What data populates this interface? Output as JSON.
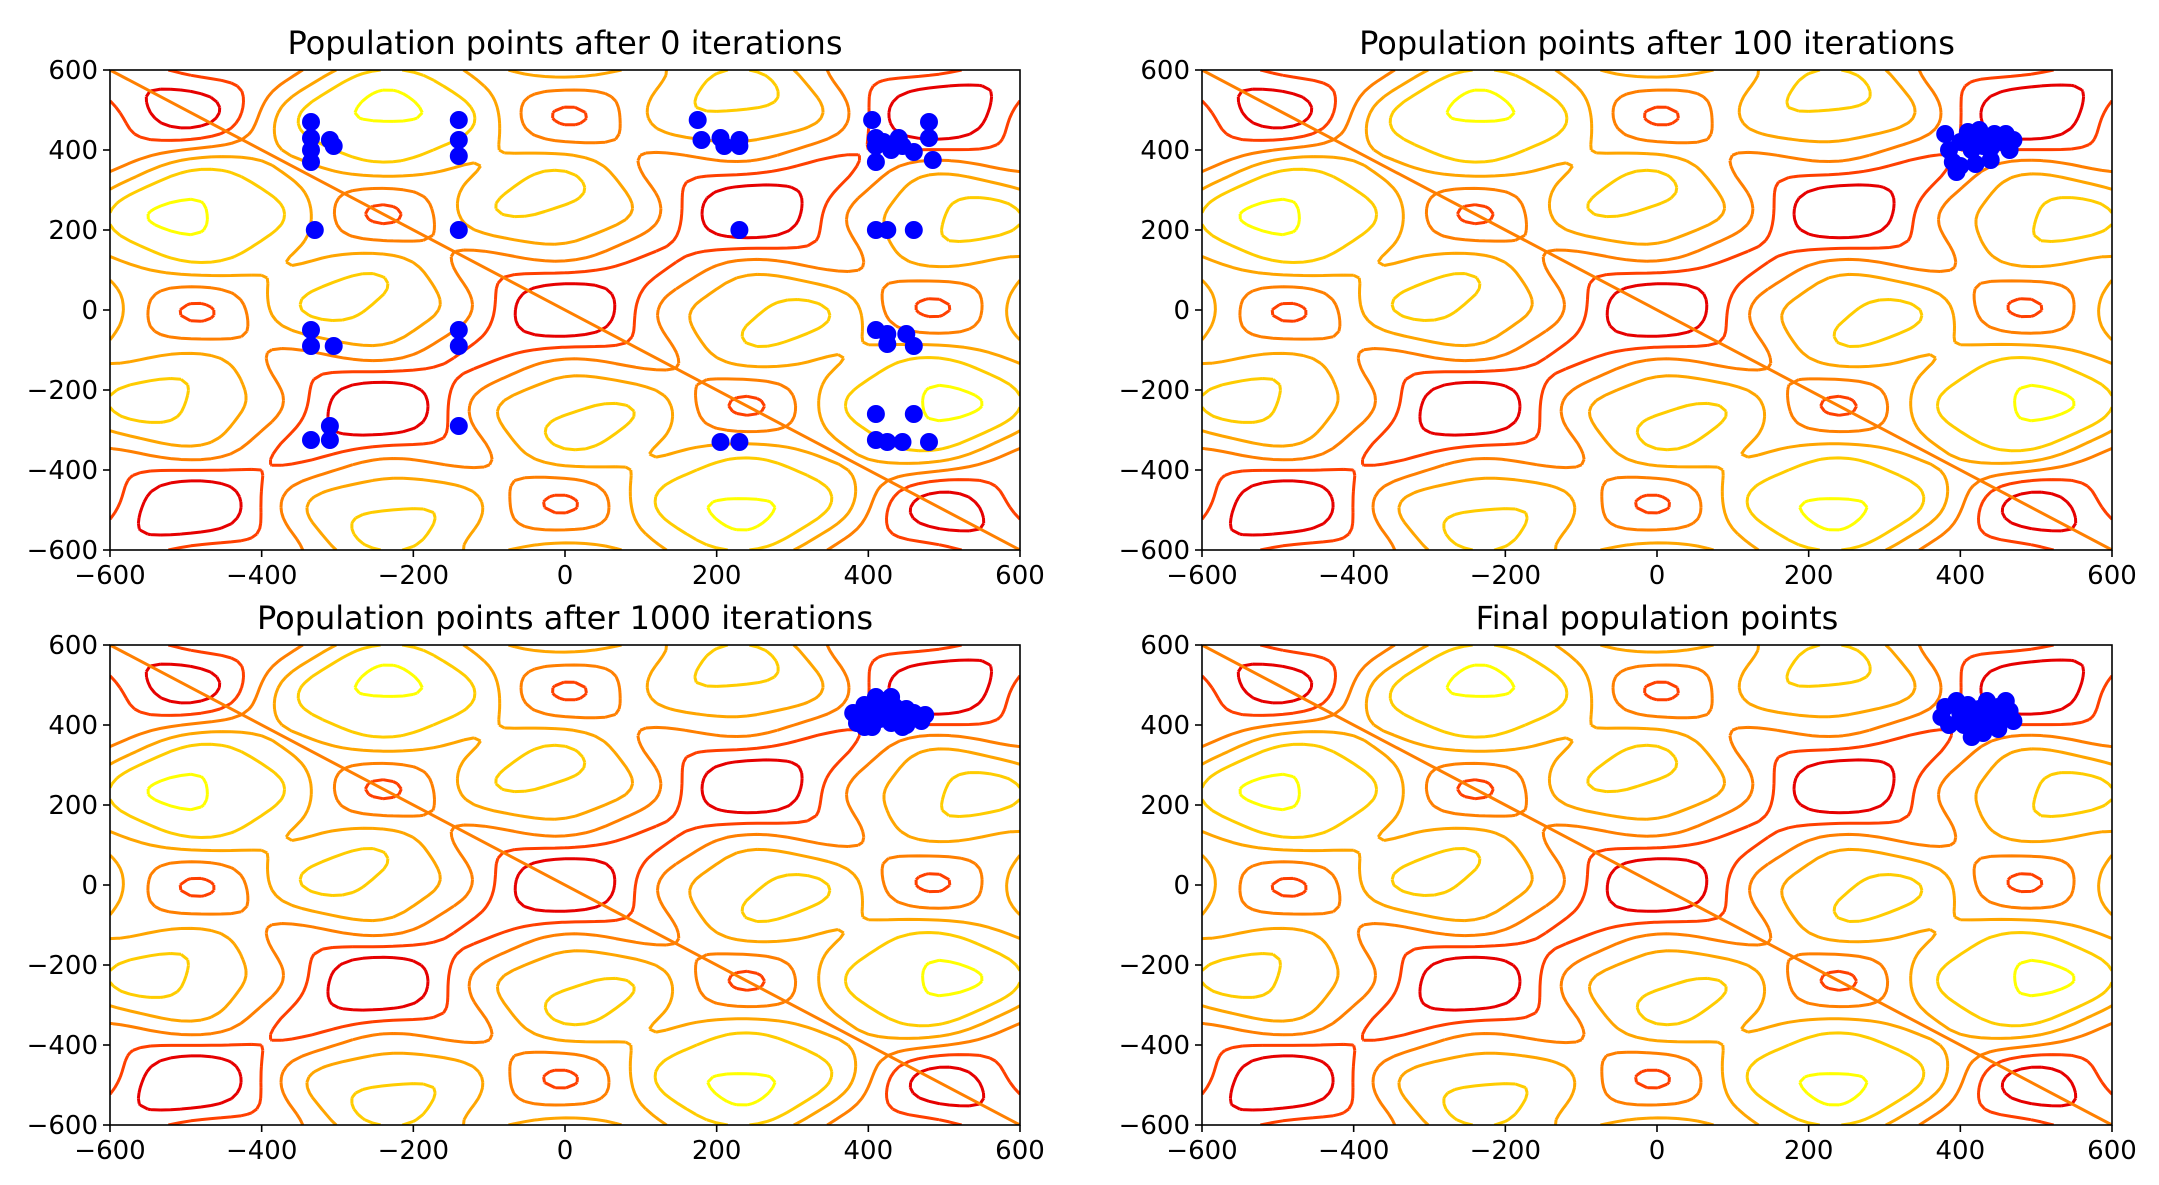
{
  "chart_data": [
    {
      "type": "scatter",
      "title": "Population points after 0 iterations",
      "xlim": [
        -600,
        600
      ],
      "ylim": [
        -600,
        600
      ],
      "xticks": [
        -600,
        -400,
        -200,
        0,
        200,
        400,
        600
      ],
      "yticks": [
        -600,
        -400,
        -200,
        0,
        200,
        400,
        600
      ],
      "xtick_labels": [
        "−600",
        "−400",
        "−200",
        "0",
        "200",
        "400",
        "600"
      ],
      "ytick_labels": [
        "−600",
        "−400",
        "−200",
        "0",
        "200",
        "400",
        "600"
      ],
      "points": [
        [
          -335,
          470
        ],
        [
          -335,
          430
        ],
        [
          -335,
          400
        ],
        [
          -335,
          370
        ],
        [
          -310,
          425
        ],
        [
          -305,
          410
        ],
        [
          -140,
          475
        ],
        [
          -140,
          425
        ],
        [
          -140,
          385
        ],
        [
          175,
          475
        ],
        [
          180,
          425
        ],
        [
          205,
          430
        ],
        [
          210,
          410
        ],
        [
          230,
          425
        ],
        [
          230,
          410
        ],
        [
          405,
          475
        ],
        [
          410,
          430
        ],
        [
          410,
          410
        ],
        [
          410,
          370
        ],
        [
          420,
          420
        ],
        [
          430,
          400
        ],
        [
          440,
          430
        ],
        [
          445,
          410
        ],
        [
          460,
          395
        ],
        [
          480,
          470
        ],
        [
          480,
          430
        ],
        [
          485,
          375
        ],
        [
          -330,
          200
        ],
        [
          -140,
          200
        ],
        [
          230,
          200
        ],
        [
          410,
          200
        ],
        [
          425,
          200
        ],
        [
          460,
          200
        ],
        [
          -335,
          -50
        ],
        [
          -335,
          -90
        ],
        [
          -305,
          -90
        ],
        [
          -140,
          -50
        ],
        [
          -140,
          -90
        ],
        [
          410,
          -50
        ],
        [
          425,
          -60
        ],
        [
          425,
          -85
        ],
        [
          450,
          -60
        ],
        [
          460,
          -90
        ],
        [
          -335,
          -325
        ],
        [
          -310,
          -290
        ],
        [
          -310,
          -325
        ],
        [
          -140,
          -290
        ],
        [
          205,
          -330
        ],
        [
          230,
          -330
        ],
        [
          410,
          -260
        ],
        [
          410,
          -325
        ],
        [
          425,
          -330
        ],
        [
          445,
          -330
        ],
        [
          460,
          -260
        ],
        [
          480,
          -330
        ]
      ]
    },
    {
      "type": "scatter",
      "title": "Population points after 100 iterations",
      "xlim": [
        -600,
        600
      ],
      "ylim": [
        -600,
        600
      ],
      "xticks": [
        -600,
        -400,
        -200,
        0,
        200,
        400,
        600
      ],
      "yticks": [
        -600,
        -400,
        -200,
        0,
        200,
        400,
        600
      ],
      "xtick_labels": [
        "−600",
        "−400",
        "−200",
        "0",
        "200",
        "400",
        "600"
      ],
      "ytick_labels": [
        "−600",
        "−400",
        "−200",
        "0",
        "200",
        "400",
        "600"
      ],
      "points": [
        [
          380,
          440
        ],
        [
          385,
          400
        ],
        [
          390,
          370
        ],
        [
          400,
          420
        ],
        [
          410,
          445
        ],
        [
          410,
          420
        ],
        [
          415,
          400
        ],
        [
          420,
          430
        ],
        [
          425,
          450
        ],
        [
          430,
          410
        ],
        [
          435,
          425
        ],
        [
          440,
          405
        ],
        [
          445,
          440
        ],
        [
          455,
          420
        ],
        [
          465,
          400
        ],
        [
          470,
          425
        ],
        [
          400,
          360
        ],
        [
          420,
          365
        ],
        [
          440,
          375
        ],
        [
          460,
          440
        ],
        [
          395,
          345
        ]
      ]
    },
    {
      "type": "scatter",
      "title": "Population points after 1000 iterations",
      "xlim": [
        -600,
        600
      ],
      "ylim": [
        -600,
        600
      ],
      "xticks": [
        -600,
        -400,
        -200,
        0,
        200,
        400,
        600
      ],
      "yticks": [
        -600,
        -400,
        -200,
        0,
        200,
        400,
        600
      ],
      "xtick_labels": [
        "−600",
        "−400",
        "−200",
        "0",
        "200",
        "400",
        "600"
      ],
      "ytick_labels": [
        "−600",
        "−400",
        "−200",
        "0",
        "200",
        "400",
        "600"
      ],
      "points": [
        [
          380,
          430
        ],
        [
          385,
          405
        ],
        [
          395,
          450
        ],
        [
          400,
          420
        ],
        [
          405,
          395
        ],
        [
          410,
          440
        ],
        [
          415,
          415
        ],
        [
          420,
          460
        ],
        [
          425,
          430
        ],
        [
          430,
          405
        ],
        [
          435,
          445
        ],
        [
          440,
          420
        ],
        [
          445,
          395
        ],
        [
          450,
          440
        ],
        [
          455,
          415
        ],
        [
          460,
          430
        ],
        [
          470,
          410
        ],
        [
          475,
          425
        ],
        [
          410,
          470
        ],
        [
          430,
          470
        ],
        [
          395,
          395
        ],
        [
          450,
          400
        ]
      ]
    },
    {
      "type": "scatter",
      "title": "Final population points",
      "xlim": [
        -600,
        600
      ],
      "ylim": [
        -600,
        600
      ],
      "xticks": [
        -600,
        -400,
        -200,
        0,
        200,
        400,
        600
      ],
      "yticks": [
        -600,
        -400,
        -200,
        0,
        200,
        400,
        600
      ],
      "xtick_labels": [
        "−600",
        "−400",
        "−200",
        "0",
        "200",
        "400",
        "600"
      ],
      "ytick_labels": [
        "−600",
        "−400",
        "−200",
        "0",
        "200",
        "400",
        "600"
      ],
      "points": [
        [
          375,
          420
        ],
        [
          380,
          445
        ],
        [
          385,
          400
        ],
        [
          395,
          460
        ],
        [
          400,
          430
        ],
        [
          405,
          400
        ],
        [
          410,
          450
        ],
        [
          415,
          420
        ],
        [
          420,
          395
        ],
        [
          425,
          440
        ],
        [
          430,
          415
        ],
        [
          435,
          460
        ],
        [
          440,
          430
        ],
        [
          445,
          400
        ],
        [
          450,
          445
        ],
        [
          455,
          420
        ],
        [
          460,
          460
        ],
        [
          465,
          435
        ],
        [
          470,
          410
        ],
        [
          415,
          370
        ],
        [
          430,
          380
        ],
        [
          450,
          390
        ]
      ]
    }
  ],
  "colors": {
    "points": "#0000ff",
    "contour_levels": [
      "#ffff00",
      "#ffcc00",
      "#ffa500",
      "#ff7f00",
      "#ff4000",
      "#e60000"
    ]
  }
}
